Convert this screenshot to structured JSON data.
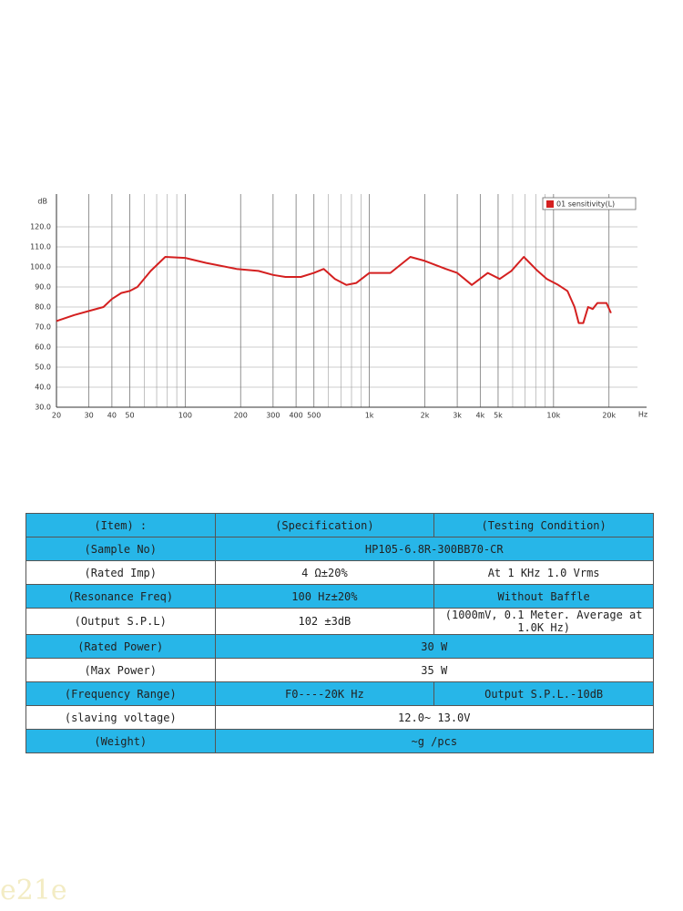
{
  "chart_data": {
    "type": "line",
    "y_label": "dB",
    "x_label": "Hz",
    "log_x": true,
    "grid": true,
    "legend": "upper right",
    "xlim": [
      20,
      32000
    ],
    "ylim": [
      30,
      130
    ],
    "xticks": [
      20,
      30,
      40,
      50,
      100,
      200,
      300,
      400,
      500,
      {
        "value": 1000,
        "label": "1k"
      },
      {
        "value": 2000,
        "label": "2k"
      },
      {
        "value": 3000,
        "label": "3k"
      },
      {
        "value": 4000,
        "label": "4k"
      },
      {
        "value": 5000,
        "label": "5k"
      },
      {
        "value": 10000,
        "label": "10k"
      },
      {
        "value": 20000,
        "label": "20k"
      }
    ],
    "minor_xticks": [
      60,
      70,
      80,
      90,
      600,
      700,
      800,
      900,
      6000,
      7000,
      8000,
      9000
    ],
    "yticks": [
      {
        "value": 30,
        "label": "30.0"
      },
      {
        "value": 40,
        "label": "40.0"
      },
      {
        "value": 50,
        "label": "50.0"
      },
      {
        "value": 60,
        "label": "60.0"
      },
      {
        "value": 70,
        "label": "70.0"
      },
      {
        "value": 80,
        "label": "80.0"
      },
      {
        "value": 90,
        "label": "90.0"
      },
      {
        "value": 100,
        "label": "100.0"
      },
      {
        "value": 110,
        "label": "110.0"
      },
      {
        "value": 120,
        "label": "120.0"
      }
    ],
    "series": [
      {
        "name": "01 sensitivity(L)",
        "color": "#d42020",
        "x": [
          20,
          25,
          30,
          36,
          40,
          45,
          50,
          55,
          65,
          78,
          100,
          130,
          190,
          250,
          300,
          350,
          425,
          500,
          565,
          650,
          750,
          850,
          1000,
          1300,
          1670,
          2000,
          2600,
          3000,
          3600,
          4400,
          5100,
          5900,
          6900,
          8200,
          9200,
          10600,
          11900,
          13000,
          13700,
          14500,
          15400,
          16300,
          17300,
          19400,
          20500
        ],
        "values": [
          73,
          76,
          78,
          80,
          84,
          87,
          88,
          90,
          98,
          105,
          104.5,
          102,
          99,
          98,
          96,
          95,
          95,
          97,
          99,
          94,
          91,
          92,
          97,
          97,
          105,
          103,
          99,
          97,
          91,
          97,
          94,
          98,
          105,
          98,
          94,
          91,
          88,
          80,
          72,
          72,
          80,
          79,
          82,
          82,
          77
        ]
      }
    ]
  },
  "table": {
    "rows": [
      [
        "(Item) :",
        "(Specification)",
        "(Testing Condition)"
      ],
      [
        "(Sample No)",
        "HP105-6.8R-300BB70-CR"
      ],
      [
        "(Rated Imp)",
        "4 Ω±20%",
        "At 1 KHz  1.0 Vrms"
      ],
      [
        "(Resonance Freq)",
        "100 Hz±20%",
        "Without Baffle"
      ],
      [
        "(Output S.P.L)",
        "102 ±3dB",
        "(1000mV, 0.1 Meter. Average at 1.0K Hz)"
      ],
      [
        "(Rated Power)",
        "30 W"
      ],
      [
        "(Max Power)",
        "35 W"
      ],
      [
        "(Frequency Range)",
        "F0----20K Hz",
        "Output S.P.L.-10dB"
      ],
      [
        "(slaving voltage)",
        "12.0~ 13.0V"
      ],
      [
        "(Weight)",
        "~g /pcs"
      ]
    ]
  },
  "watermark": "e21e"
}
